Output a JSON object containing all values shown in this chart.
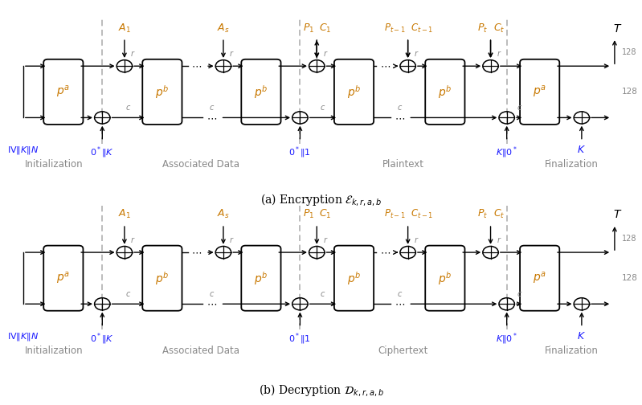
{
  "bg": "#ffffff",
  "bk": "#000000",
  "orange": "#c87800",
  "gray": "#888888",
  "blue": "#1a1aff",
  "dashed_color": "#aaaaaa",
  "sec_enc": [
    "Initialization",
    "Associated Data",
    "Plaintext",
    "Finalization"
  ],
  "sec_dec": [
    "Initialization",
    "Associated Data",
    "Ciphertext",
    "Finalization"
  ]
}
